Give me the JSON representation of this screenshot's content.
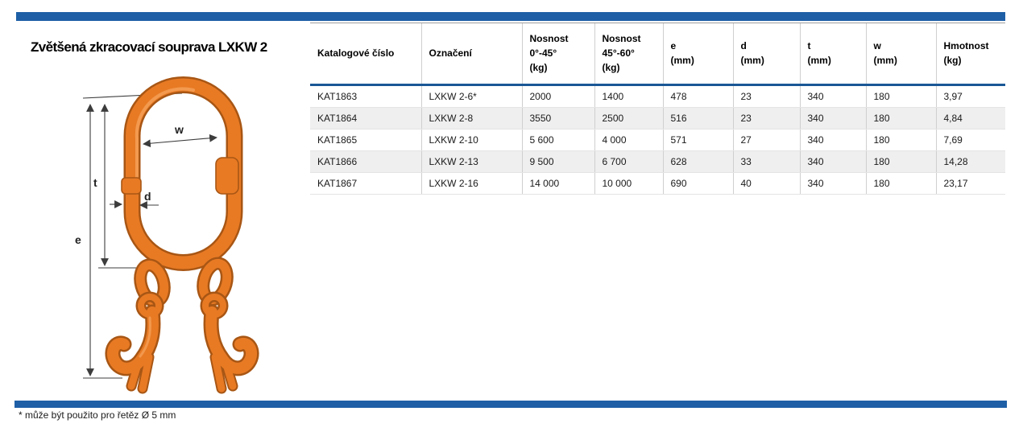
{
  "page": {
    "title": "Zvětšená zkracovací souprava LXKW 2",
    "footnote": "* může být použito pro řetěz Ø 5 mm",
    "colors": {
      "accent": "#1E5FA6",
      "header_rule": "#1A5796",
      "row_alt": "#EFEFEF",
      "table_border": "#9E9E9E",
      "grid": "#CFCFCF",
      "row_line": "#E4E4E4",
      "text": "#1A1A1A",
      "product": "#E87A24",
      "product_dark": "#A85614",
      "product_light": "#F4A057",
      "dimension": "#3C3C3C"
    }
  },
  "diagram": {
    "labels": {
      "e": "e",
      "t": "t",
      "d": "d",
      "w": "w"
    }
  },
  "table": {
    "columns": [
      {
        "id": "catalog",
        "label": "Katalogové číslo"
      },
      {
        "id": "designation",
        "label": "Označení"
      },
      {
        "id": "wll_0_45",
        "label": "Nosnost\n0°-45°\n(kg)"
      },
      {
        "id": "wll_45_60",
        "label": "Nosnost\n45°-60°\n(kg)"
      },
      {
        "id": "e",
        "label": "e\n(mm)"
      },
      {
        "id": "d",
        "label": "d\n(mm)"
      },
      {
        "id": "t",
        "label": "t\n(mm)"
      },
      {
        "id": "w",
        "label": "w\n(mm)"
      },
      {
        "id": "weight",
        "label": "Hmotnost\n(kg)"
      }
    ],
    "rows": [
      [
        "KAT1863",
        "LXKW 2-6*",
        "2000",
        "1400",
        "478",
        "23",
        "340",
        "180",
        "3,97"
      ],
      [
        "KAT1864",
        "LXKW 2-8",
        "3550",
        "2500",
        "516",
        "23",
        "340",
        "180",
        "4,84"
      ],
      [
        "KAT1865",
        "LXKW 2-10",
        "5 600",
        "4 000",
        "571",
        "27",
        "340",
        "180",
        "7,69"
      ],
      [
        "KAT1866",
        "LXKW 2-13",
        "9 500",
        "6 700",
        "628",
        "33",
        "340",
        "180",
        "14,28"
      ],
      [
        "KAT1867",
        "LXKW 2-16",
        "14 000",
        "10 000",
        "690",
        "40",
        "340",
        "180",
        "23,17"
      ]
    ]
  }
}
